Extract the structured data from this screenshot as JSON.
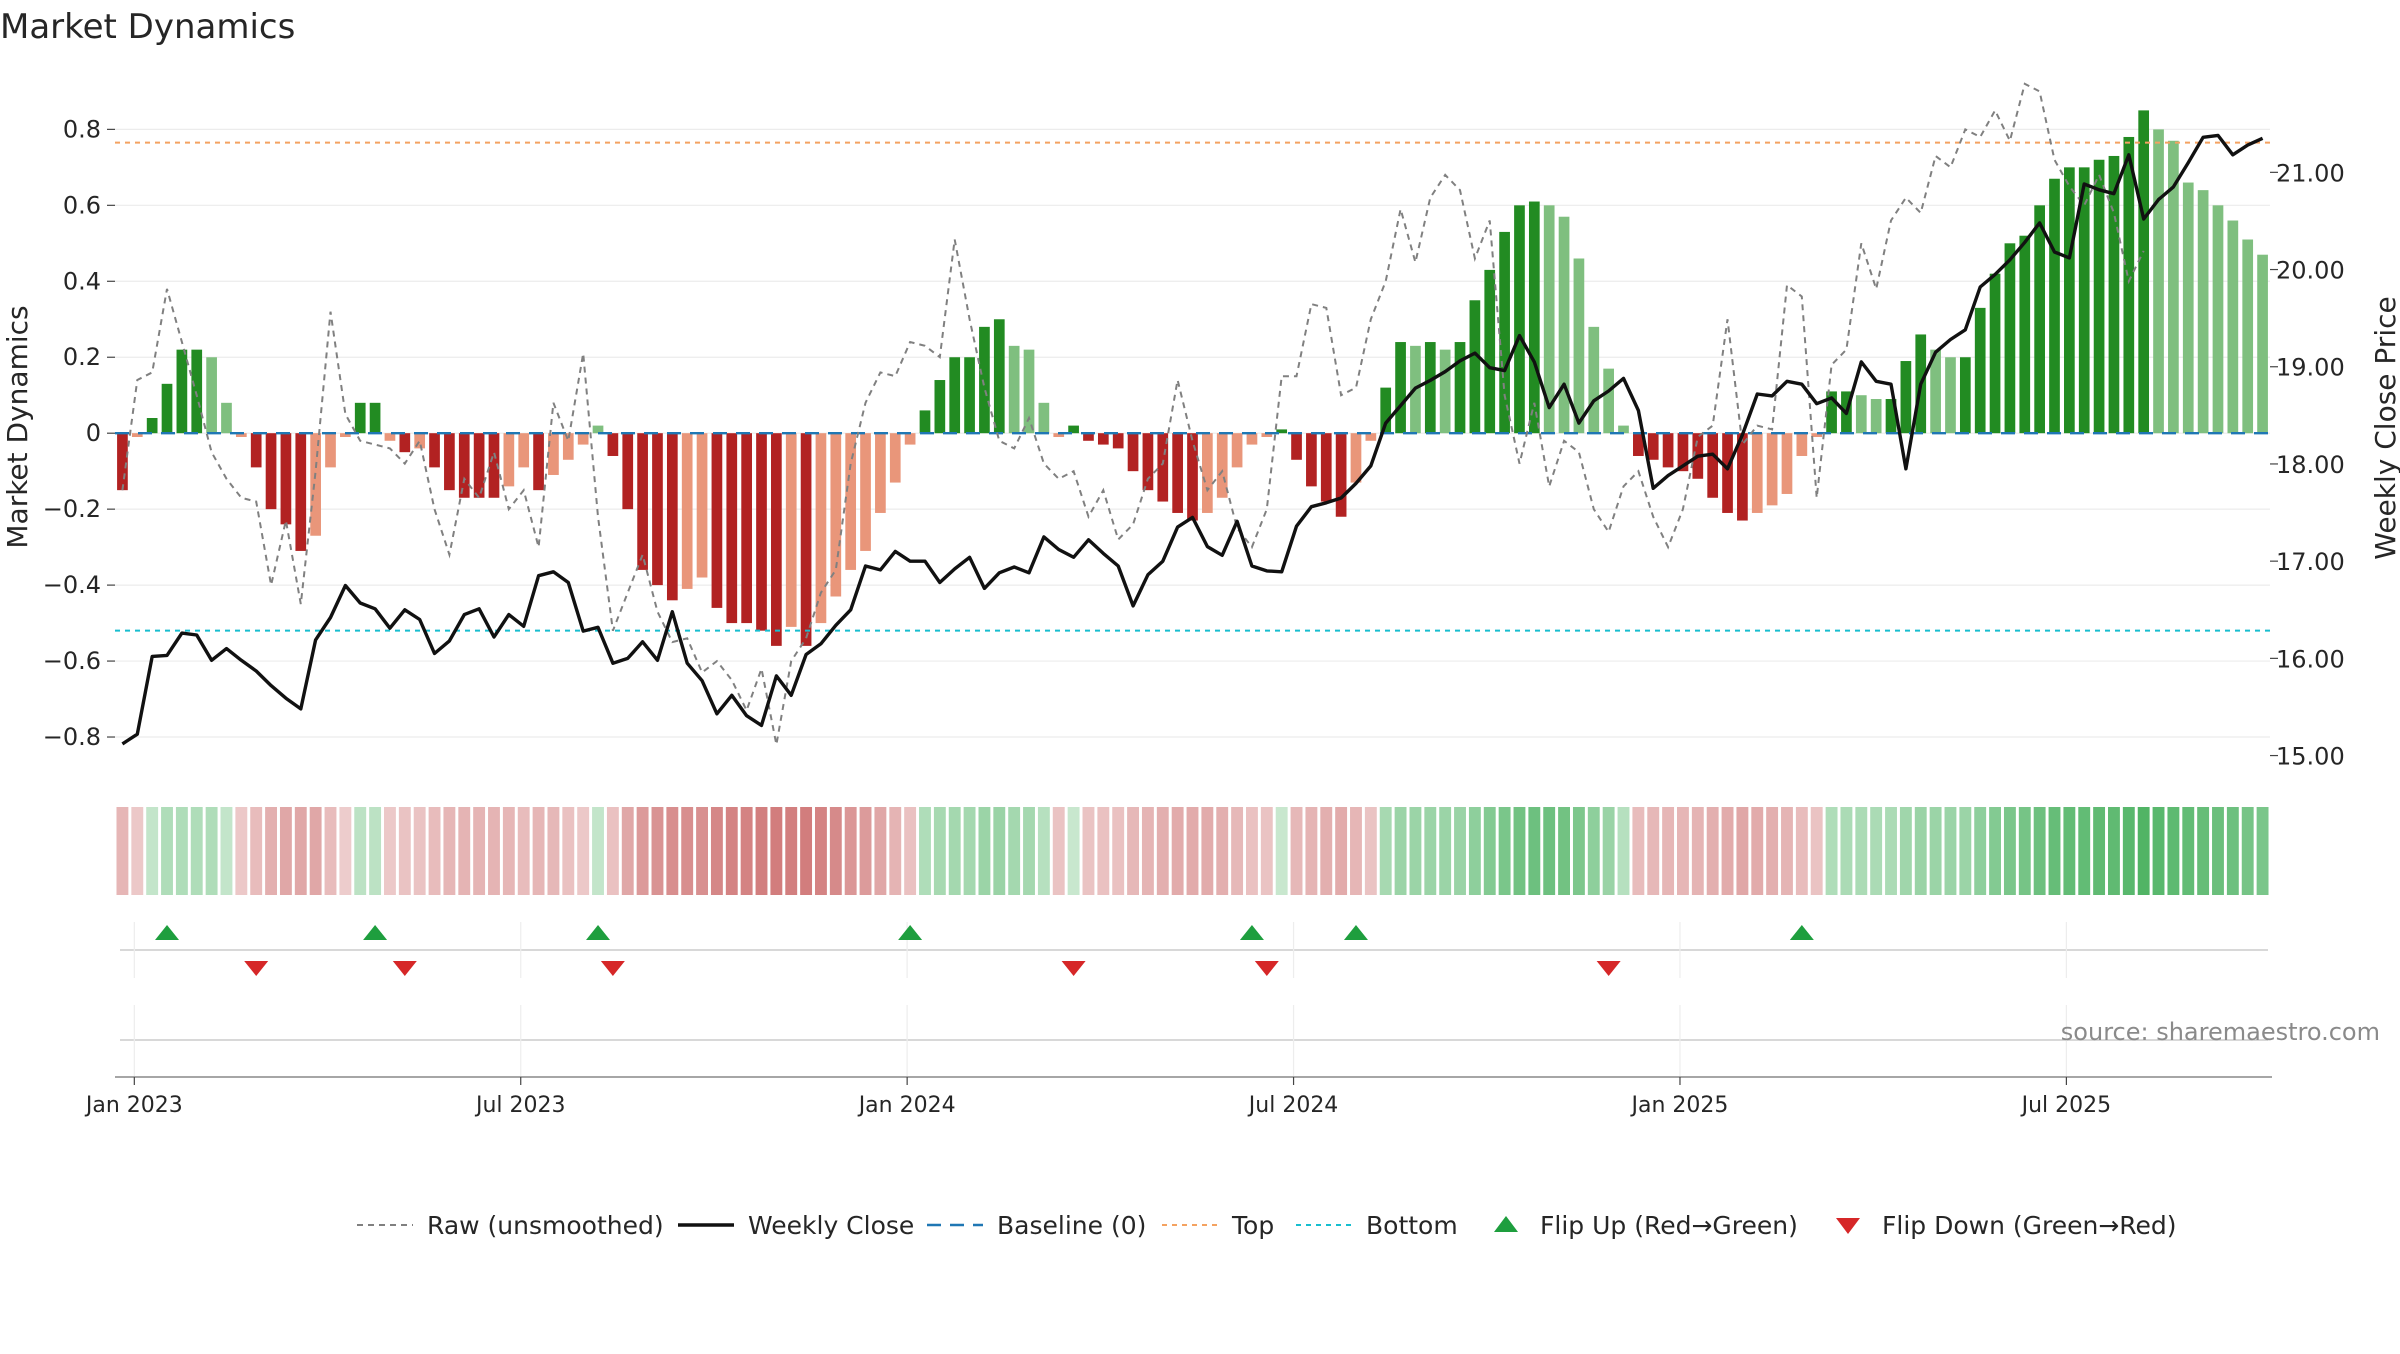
{
  "chart_data": {
    "type": "bar",
    "title": "Market Dynamics",
    "ylabel": "Market Dynamics",
    "ylabel_right": "Weekly Close Price",
    "source": "source: sharemaestro.com",
    "ylim": [
      -0.9,
      0.93
    ],
    "ylim_right": [
      14.8,
      21.95
    ],
    "y_ticks": [
      "0.8",
      "0.6",
      "0.4",
      "0.2",
      "0",
      "−0.2",
      "−0.4",
      "−0.6",
      "−0.8"
    ],
    "y_ticks_values": [
      0.8,
      0.6,
      0.4,
      0.2,
      0,
      -0.2,
      -0.4,
      -0.6,
      -0.8
    ],
    "y_right_ticks": [
      "21.00",
      "20.00",
      "19.00",
      "18.00",
      "17.00",
      "16.00",
      "15.00"
    ],
    "y_right_ticks_values": [
      21,
      20,
      19,
      18,
      17,
      16,
      15
    ],
    "x_ticks": [
      "Jan 2023",
      "Jul 2023",
      "Jan 2024",
      "Jul 2024",
      "Jan 2025",
      "Jul 2025"
    ],
    "x_tick_weeks": [
      1.3,
      27.3,
      53.3,
      79.3,
      105.3,
      131.3
    ],
    "top_line": 0.765,
    "bottom_line": -0.52,
    "grid": true,
    "legend_position": "bottom-center",
    "colors": {
      "strong_green": "#228b22",
      "light_green": "#7fbf7f",
      "strong_red": "#b22222",
      "light_red": "#e9967a",
      "raw": "#808080",
      "close": "#111111",
      "baseline": "#1f77b4",
      "top": "#f4a261",
      "bottom": "#17becf",
      "flip_up": "#1e9e3e",
      "flip_down": "#d62728"
    },
    "bars": [
      -0.15,
      -0.01,
      0.04,
      0.13,
      0.22,
      0.22,
      0.2,
      0.08,
      -0.01,
      -0.09,
      -0.2,
      -0.24,
      -0.31,
      -0.27,
      -0.09,
      -0.01,
      0.08,
      0.08,
      -0.02,
      -0.05,
      -0.04,
      -0.09,
      -0.15,
      -0.17,
      -0.17,
      -0.17,
      -0.14,
      -0.09,
      -0.15,
      -0.11,
      -0.07,
      -0.03,
      0.02,
      -0.06,
      -0.2,
      -0.36,
      -0.4,
      -0.44,
      -0.41,
      -0.38,
      -0.46,
      -0.5,
      -0.5,
      -0.52,
      -0.56,
      -0.51,
      -0.56,
      -0.5,
      -0.43,
      -0.36,
      -0.31,
      -0.21,
      -0.13,
      -0.03,
      0.06,
      0.14,
      0.2,
      0.2,
      0.28,
      0.3,
      0.23,
      0.22,
      0.08,
      -0.01,
      0.02,
      -0.02,
      -0.03,
      -0.04,
      -0.1,
      -0.15,
      -0.18,
      -0.21,
      -0.23,
      -0.21,
      -0.17,
      -0.09,
      -0.03,
      -0.01,
      0.01,
      -0.07,
      -0.14,
      -0.18,
      -0.22,
      -0.13,
      -0.02,
      0.12,
      0.24,
      0.23,
      0.24,
      0.22,
      0.24,
      0.35,
      0.43,
      0.53,
      0.6,
      0.61,
      0.6,
      0.57,
      0.46,
      0.28,
      0.17,
      0.02,
      -0.06,
      -0.07,
      -0.09,
      -0.1,
      -0.12,
      -0.17,
      -0.21,
      -0.23,
      -0.21,
      -0.19,
      -0.16,
      -0.06,
      -0.01,
      0.11,
      0.11,
      0.1,
      0.09,
      0.09,
      0.19,
      0.26,
      0.22,
      0.2,
      0.2,
      0.33,
      0.42,
      0.5,
      0.52,
      0.6,
      0.67,
      0.7,
      0.7,
      0.72,
      0.73,
      0.78,
      0.85,
      0.8,
      0.77,
      0.66,
      0.64,
      0.6,
      0.56,
      0.51,
      0.47
    ],
    "raw": [
      -0.15,
      0.14,
      0.16,
      0.38,
      0.24,
      0.1,
      -0.05,
      -0.12,
      -0.17,
      -0.18,
      -0.4,
      -0.23,
      -0.45,
      -0.1,
      0.32,
      0.05,
      -0.02,
      -0.03,
      -0.04,
      -0.08,
      -0.02,
      -0.2,
      -0.32,
      -0.12,
      -0.17,
      -0.05,
      -0.2,
      -0.15,
      -0.3,
      0.08,
      -0.02,
      0.21,
      -0.22,
      -0.52,
      -0.42,
      -0.32,
      -0.47,
      -0.55,
      -0.54,
      -0.63,
      -0.6,
      -0.65,
      -0.73,
      -0.62,
      -0.82,
      -0.6,
      -0.54,
      -0.42,
      -0.36,
      -0.08,
      0.08,
      0.16,
      0.15,
      0.24,
      0.23,
      0.2,
      0.51,
      0.3,
      0.12,
      -0.02,
      -0.04,
      0.04,
      -0.08,
      -0.12,
      -0.1,
      -0.22,
      -0.15,
      -0.28,
      -0.24,
      -0.12,
      -0.08,
      0.14,
      -0.02,
      -0.15,
      -0.1,
      -0.25,
      -0.3,
      -0.2,
      0.15,
      0.15,
      0.34,
      0.33,
      0.1,
      0.12,
      0.3,
      0.4,
      0.59,
      0.45,
      0.62,
      0.68,
      0.64,
      0.46,
      0.56,
      0.1,
      -0.08,
      0.08,
      -0.14,
      -0.02,
      -0.05,
      -0.2,
      -0.26,
      -0.14,
      -0.1,
      -0.22,
      -0.3,
      -0.2,
      -0.01,
      0.02,
      0.3,
      -0.03,
      0.02,
      0.01,
      0.39,
      0.36,
      -0.17,
      0.18,
      0.22,
      0.5,
      0.38,
      0.56,
      0.62,
      0.58,
      0.73,
      0.7,
      0.8,
      0.78,
      0.85,
      0.77,
      0.92,
      0.9,
      0.72,
      0.65,
      0.6,
      0.68,
      0.58,
      0.4,
      0.48
    ],
    "close": [
      15.12,
      15.22,
      16.02,
      16.03,
      16.26,
      16.24,
      15.98,
      16.1,
      15.98,
      15.87,
      15.72,
      15.59,
      15.48,
      16.19,
      16.42,
      16.75,
      16.57,
      16.51,
      16.31,
      16.5,
      16.4,
      16.05,
      16.18,
      16.45,
      16.51,
      16.22,
      16.45,
      16.33,
      16.85,
      16.89,
      16.78,
      16.28,
      16.32,
      15.95,
      16.0,
      16.17,
      15.98,
      16.48,
      15.95,
      15.77,
      15.43,
      15.62,
      15.41,
      15.31,
      15.82,
      15.62,
      16.04,
      16.15,
      16.34,
      16.5,
      16.95,
      16.91,
      17.1,
      17.0,
      17.0,
      16.78,
      16.92,
      17.04,
      16.72,
      16.88,
      16.94,
      16.88,
      17.25,
      17.12,
      17.04,
      17.22,
      17.08,
      16.95,
      16.54,
      16.86,
      17.0,
      17.35,
      17.45,
      17.15,
      17.06,
      17.41,
      16.95,
      16.9,
      16.89,
      17.36,
      17.56,
      17.6,
      17.65,
      17.8,
      17.98,
      18.42,
      18.6,
      18.78,
      18.86,
      18.95,
      19.06,
      19.14,
      18.99,
      18.96,
      19.32,
      19.05,
      18.58,
      18.82,
      18.42,
      18.65,
      18.75,
      18.88,
      18.55,
      17.75,
      17.88,
      17.98,
      18.08,
      18.1,
      17.95,
      18.3,
      18.72,
      18.7,
      18.85,
      18.82,
      18.62,
      18.68,
      18.52,
      19.05,
      18.85,
      18.82,
      17.95,
      18.82,
      19.15,
      19.28,
      19.38,
      19.82,
      19.95,
      20.1,
      20.28,
      20.48,
      20.18,
      20.12,
      20.88,
      20.82,
      20.78,
      21.18,
      20.52,
      20.72,
      20.85,
      21.1,
      21.36,
      21.38,
      21.18,
      21.28,
      21.35
    ],
    "regime_strip": [
      -0.2,
      -0.08,
      0.1,
      0.25,
      0.25,
      0.25,
      0.25,
      0.1,
      -0.08,
      -0.15,
      -0.25,
      -0.3,
      -0.3,
      -0.3,
      -0.15,
      -0.05,
      0.15,
      0.15,
      -0.08,
      -0.1,
      -0.1,
      -0.15,
      -0.2,
      -0.22,
      -0.22,
      -0.22,
      -0.2,
      -0.15,
      -0.2,
      -0.18,
      -0.12,
      -0.08,
      0.1,
      -0.12,
      -0.3,
      -0.4,
      -0.45,
      -0.48,
      -0.48,
      -0.46,
      -0.52,
      -0.55,
      -0.55,
      -0.58,
      -0.6,
      -0.58,
      -0.6,
      -0.55,
      -0.5,
      -0.42,
      -0.38,
      -0.3,
      -0.22,
      -0.12,
      0.25,
      0.3,
      0.32,
      0.32,
      0.38,
      0.4,
      0.33,
      0.32,
      0.2,
      -0.1,
      0.08,
      -0.1,
      -0.12,
      -0.12,
      -0.18,
      -0.22,
      -0.25,
      -0.28,
      -0.28,
      -0.28,
      -0.25,
      -0.18,
      -0.12,
      -0.1,
      0.08,
      -0.18,
      -0.22,
      -0.25,
      -0.28,
      -0.2,
      -0.1,
      0.3,
      0.38,
      0.38,
      0.38,
      0.38,
      0.4,
      0.48,
      0.55,
      0.62,
      0.68,
      0.7,
      0.7,
      0.68,
      0.6,
      0.48,
      0.4,
      0.2,
      -0.15,
      -0.18,
      -0.2,
      -0.2,
      -0.22,
      -0.25,
      -0.28,
      -0.3,
      -0.28,
      -0.25,
      -0.22,
      -0.15,
      -0.1,
      0.25,
      0.28,
      0.28,
      0.28,
      0.28,
      0.35,
      0.4,
      0.38,
      0.38,
      0.38,
      0.48,
      0.55,
      0.62,
      0.65,
      0.7,
      0.75,
      0.78,
      0.78,
      0.8,
      0.8,
      0.85,
      0.9,
      0.85,
      0.82,
      0.78,
      0.76,
      0.72,
      0.7,
      0.65,
      0.62
    ],
    "flip_up_weeks": [
      3,
      17,
      32,
      53,
      76,
      83,
      113
    ],
    "flip_down_weeks": [
      9,
      19,
      33,
      64,
      77,
      100
    ],
    "legend": [
      {
        "label": "Raw (unsmoothed)",
        "marker": "dashed-gray"
      },
      {
        "label": "Weekly Close",
        "marker": "solid-black"
      },
      {
        "label": "Baseline (0)",
        "marker": "dashed-blue"
      },
      {
        "label": "Top",
        "marker": "dotted-orange"
      },
      {
        "label": "Bottom",
        "marker": "dotted-cyan"
      },
      {
        "label": "Flip Up (Red→Green)",
        "marker": "triangle-up-green"
      },
      {
        "label": "Flip Down (Green→Red)",
        "marker": "triangle-down-red"
      }
    ]
  }
}
